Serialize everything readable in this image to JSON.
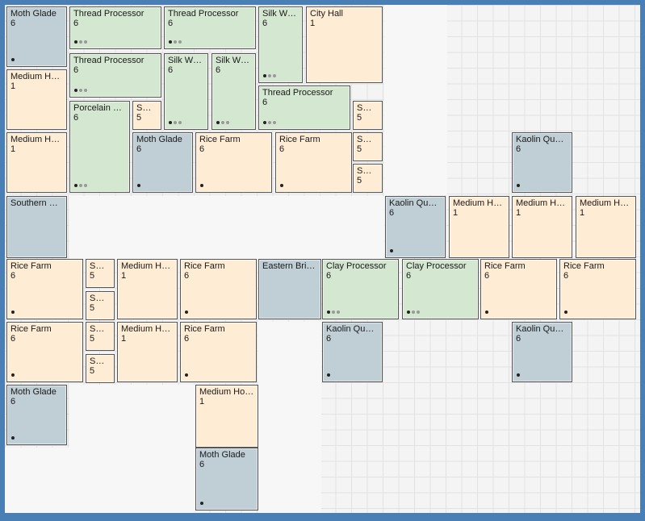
{
  "colors": {
    "workshop": "#d4e7d0",
    "residential": "#ffecd4",
    "natural": "#c0ced6"
  },
  "tiles": [
    {
      "name": "Moth Glade",
      "value": "6",
      "kind": "blue",
      "indicator": "single"
    },
    {
      "name": "Thread Processor",
      "value": "6",
      "kind": "green",
      "indicator": "triple"
    },
    {
      "name": "Thread Processor",
      "value": "6",
      "kind": "green",
      "indicator": "triple"
    },
    {
      "name": "Silk Wor...",
      "value": "6",
      "kind": "green",
      "indicator": "triple"
    },
    {
      "name": "City Hall",
      "value": "1",
      "kind": "orange",
      "indicator": "none"
    },
    {
      "name": "Medium Home",
      "value": "1",
      "kind": "orange",
      "indicator": "none"
    },
    {
      "name": "Thread Processor",
      "value": "6",
      "kind": "green",
      "indicator": "triple"
    },
    {
      "name": "Silk Wor...",
      "value": "6",
      "kind": "green",
      "indicator": "triple"
    },
    {
      "name": "Silk Wor...",
      "value": "6",
      "kind": "green",
      "indicator": "triple"
    },
    {
      "name": "Thread Processor",
      "value": "6",
      "kind": "green",
      "indicator": "triple"
    },
    {
      "name": "Porcelain Wo...",
      "value": "6",
      "kind": "green",
      "indicator": "triple"
    },
    {
      "name": "Sma...",
      "value": "5",
      "kind": "orange",
      "indicator": "none"
    },
    {
      "name": "Sma...",
      "value": "5",
      "kind": "orange",
      "indicator": "none"
    },
    {
      "name": "Medium Home",
      "value": "1",
      "kind": "orange",
      "indicator": "none"
    },
    {
      "name": "Moth Glade",
      "value": "6",
      "kind": "blue",
      "indicator": "single"
    },
    {
      "name": "Rice Farm",
      "value": "6",
      "kind": "orange",
      "indicator": "single"
    },
    {
      "name": "Rice Farm",
      "value": "6",
      "kind": "orange",
      "indicator": "single"
    },
    {
      "name": "Sma...",
      "value": "5",
      "kind": "orange",
      "indicator": "none"
    },
    {
      "name": "Sma...",
      "value": "5",
      "kind": "orange",
      "indicator": "none"
    },
    {
      "name": "Kaolin Quarry",
      "value": "6",
      "kind": "blue",
      "indicator": "single"
    },
    {
      "name": "Southern Brid...",
      "value": "",
      "kind": "blue",
      "indicator": "none"
    },
    {
      "name": "Kaolin Quarry",
      "value": "6",
      "kind": "blue",
      "indicator": "single"
    },
    {
      "name": "Medium Home",
      "value": "1",
      "kind": "orange",
      "indicator": "none"
    },
    {
      "name": "Medium Home",
      "value": "1",
      "kind": "orange",
      "indicator": "none"
    },
    {
      "name": "Medium Home",
      "value": "1",
      "kind": "orange",
      "indicator": "none"
    },
    {
      "name": "Rice Farm",
      "value": "6",
      "kind": "orange",
      "indicator": "single"
    },
    {
      "name": "Sma...",
      "value": "5",
      "kind": "orange",
      "indicator": "none"
    },
    {
      "name": "Sma...",
      "value": "5",
      "kind": "orange",
      "indicator": "none"
    },
    {
      "name": "Medium Home",
      "value": "1",
      "kind": "orange",
      "indicator": "none"
    },
    {
      "name": "Rice Farm",
      "value": "6",
      "kind": "orange",
      "indicator": "single"
    },
    {
      "name": "Eastern Bridge",
      "value": "",
      "kind": "blue",
      "indicator": "none"
    },
    {
      "name": "Clay Processor",
      "value": "6",
      "kind": "green",
      "indicator": "triple"
    },
    {
      "name": "Clay Processor",
      "value": "6",
      "kind": "green",
      "indicator": "triple"
    },
    {
      "name": "Rice Farm",
      "value": "6",
      "kind": "orange",
      "indicator": "single"
    },
    {
      "name": "Rice Farm",
      "value": "6",
      "kind": "orange",
      "indicator": "single"
    },
    {
      "name": "Rice Farm",
      "value": "6",
      "kind": "orange",
      "indicator": "single"
    },
    {
      "name": "Sma...",
      "value": "5",
      "kind": "orange",
      "indicator": "none"
    },
    {
      "name": "Sma...",
      "value": "5",
      "kind": "orange",
      "indicator": "none"
    },
    {
      "name": "Medium Home",
      "value": "1",
      "kind": "orange",
      "indicator": "none"
    },
    {
      "name": "Rice Farm",
      "value": "6",
      "kind": "orange",
      "indicator": "single"
    },
    {
      "name": "Kaolin Quarry",
      "value": "6",
      "kind": "blue",
      "indicator": "single"
    },
    {
      "name": "Kaolin Quarry",
      "value": "6",
      "kind": "blue",
      "indicator": "single"
    },
    {
      "name": "Moth Glade",
      "value": "6",
      "kind": "blue",
      "indicator": "single"
    },
    {
      "name": "Medium Home",
      "value": "1",
      "kind": "orange",
      "indicator": "none"
    },
    {
      "name": "Moth Glade",
      "value": "6",
      "kind": "blue",
      "indicator": "single"
    }
  ]
}
